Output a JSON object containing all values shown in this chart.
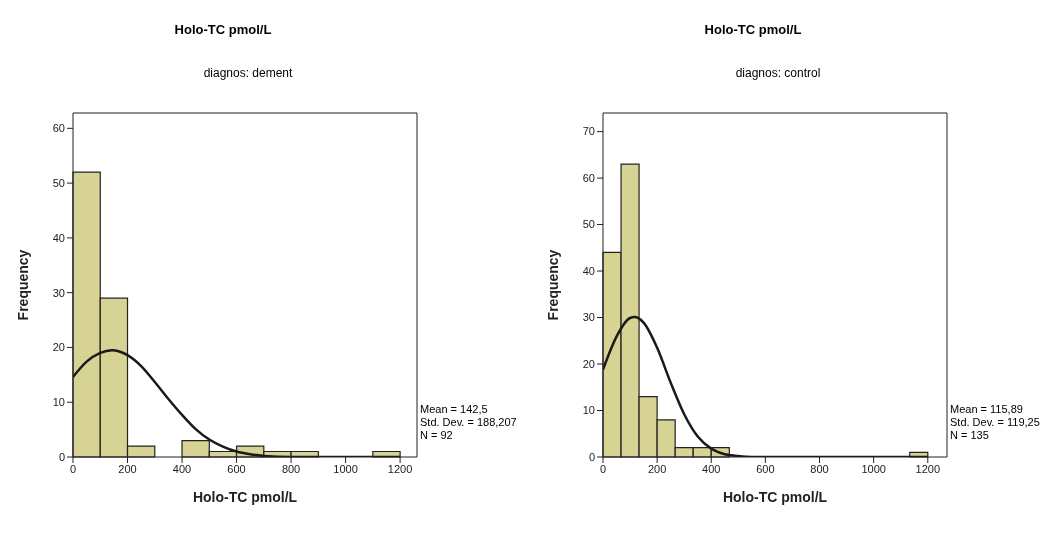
{
  "chart_data": [
    {
      "type": "histogram",
      "title": "Holo-TC pmol/L",
      "subtitle": "diagnos: dement",
      "xlabel": "Holo-TC pmol/L",
      "ylabel": "Frequency",
      "bins": [
        0,
        100,
        200,
        300,
        400,
        500,
        600,
        700,
        800,
        900,
        1000,
        1100,
        1200
      ],
      "xlim": [
        0,
        1262
      ],
      "ylim": [
        0,
        62.8
      ],
      "xticks": [
        0,
        200,
        400,
        600,
        800,
        1000,
        1200
      ],
      "yticks": [
        0,
        10,
        20,
        30,
        40,
        50,
        60
      ],
      "annotations": [
        "Mean = 142,5",
        "Std. Dev. = 188,207",
        "N = 92"
      ],
      "series": [
        {
          "color": "#d6d395",
          "values": [
            52,
            29,
            2,
            0,
            3,
            1,
            2,
            1,
            1,
            0,
            0,
            1
          ]
        },
        {
          "type": "line",
          "color": "#1a1a1a",
          "x": [
            0,
            50,
            100,
            142.5,
            200,
            250,
            300,
            350,
            400,
            450,
            500,
            550,
            600,
            650,
            700,
            800,
            900,
            1000,
            1100,
            1200
          ],
          "values": [
            14.6,
            17.4,
            19.0,
            19.5,
            18.6,
            16.6,
            13.7,
            10.6,
            7.7,
            5.1,
            3.2,
            1.9,
            1.0,
            0.5,
            0.2,
            0,
            0,
            0,
            0,
            0
          ]
        }
      ]
    },
    {
      "type": "histogram",
      "title": "Holo-TC pmol/L",
      "subtitle": "diagnos: control",
      "xlabel": "Holo-TC pmol/L",
      "ylabel": "Frequency",
      "bins": [
        0,
        66.7,
        133.3,
        200,
        266.7,
        333.3,
        400,
        466.7,
        533.3,
        600,
        666.7,
        733.3,
        800,
        866.7,
        933.3,
        1000,
        1066.7,
        1133.3,
        1200
      ],
      "xlim": [
        0,
        1271
      ],
      "ylim": [
        0,
        74
      ],
      "xticks": [
        0,
        200,
        400,
        600,
        800,
        1000,
        1200
      ],
      "yticks": [
        0,
        10,
        20,
        30,
        40,
        50,
        60,
        70
      ],
      "annotations": [
        "Mean = 115,89",
        "Std. Dev. = 119,25",
        "N = 135"
      ],
      "series": [
        {
          "color": "#d6d395",
          "values": [
            44,
            63,
            13,
            8,
            2,
            2,
            2,
            0,
            0,
            0,
            0,
            0,
            0,
            0,
            0,
            0,
            0,
            1
          ]
        },
        {
          "type": "line",
          "color": "#1a1a1a",
          "x": [
            0,
            50,
            100,
            116,
            150,
            200,
            250,
            300,
            350,
            400,
            450,
            500,
            550,
            600,
            700,
            800,
            900,
            1000,
            1100,
            1200
          ],
          "values": [
            18.8,
            25.9,
            29.9,
            30.1,
            28.9,
            23.5,
            16.0,
            9.2,
            4.4,
            1.8,
            0.6,
            0.2,
            0,
            0,
            0,
            0,
            0,
            0,
            0,
            0
          ]
        }
      ]
    }
  ]
}
